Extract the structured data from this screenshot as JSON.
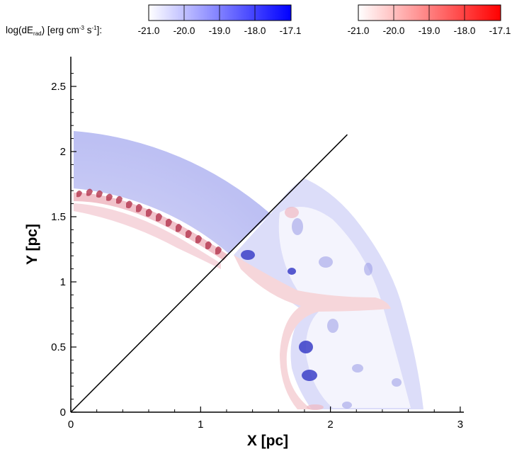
{
  "chart_data": {
    "type": "heatmap",
    "title": "",
    "xlabel": "X [pc]",
    "ylabel": "Y [pc]",
    "xlim": [
      0,
      3
    ],
    "ylim": [
      0,
      2.6
    ],
    "x_ticks": [
      "0",
      "1",
      "2",
      "3"
    ],
    "y_ticks": [
      "0",
      "0.5",
      "1",
      "1.5",
      "2",
      "2.5"
    ],
    "colorbar_label": {
      "main": "log(dE",
      "sub": "rad",
      "mid": ") [erg cm",
      "sup1": "-3",
      "mid2": " s",
      "sup2": "-1",
      "end": "]:"
    },
    "colorbars": [
      {
        "name": "blue",
        "color_low": "#ffffff",
        "color_high": "#0000ff",
        "tick_labels": [
          "-21.0",
          "-20.0",
          "-19.0",
          "-18.0",
          "-17.1"
        ]
      },
      {
        "name": "red",
        "color_low": "#ffffff",
        "color_high": "#ff0000",
        "tick_labels": [
          "-21.0",
          "-20.0",
          "-19.0",
          "-18.0",
          "-17.1"
        ]
      }
    ],
    "diagonal_line": {
      "from": [
        0,
        0
      ],
      "to": [
        2.13,
        2.13
      ]
    },
    "regions": [
      {
        "name": "blue-shell-left",
        "color": "#bcbff3",
        "r_outer": 2.18,
        "r_inner": 1.6
      },
      {
        "name": "red-shell-left",
        "color": "#e8a8b6",
        "r": 1.6
      },
      {
        "name": "right-shell",
        "color_blue": "#d2d4f7",
        "color_red": "#f7d9dd"
      }
    ]
  }
}
